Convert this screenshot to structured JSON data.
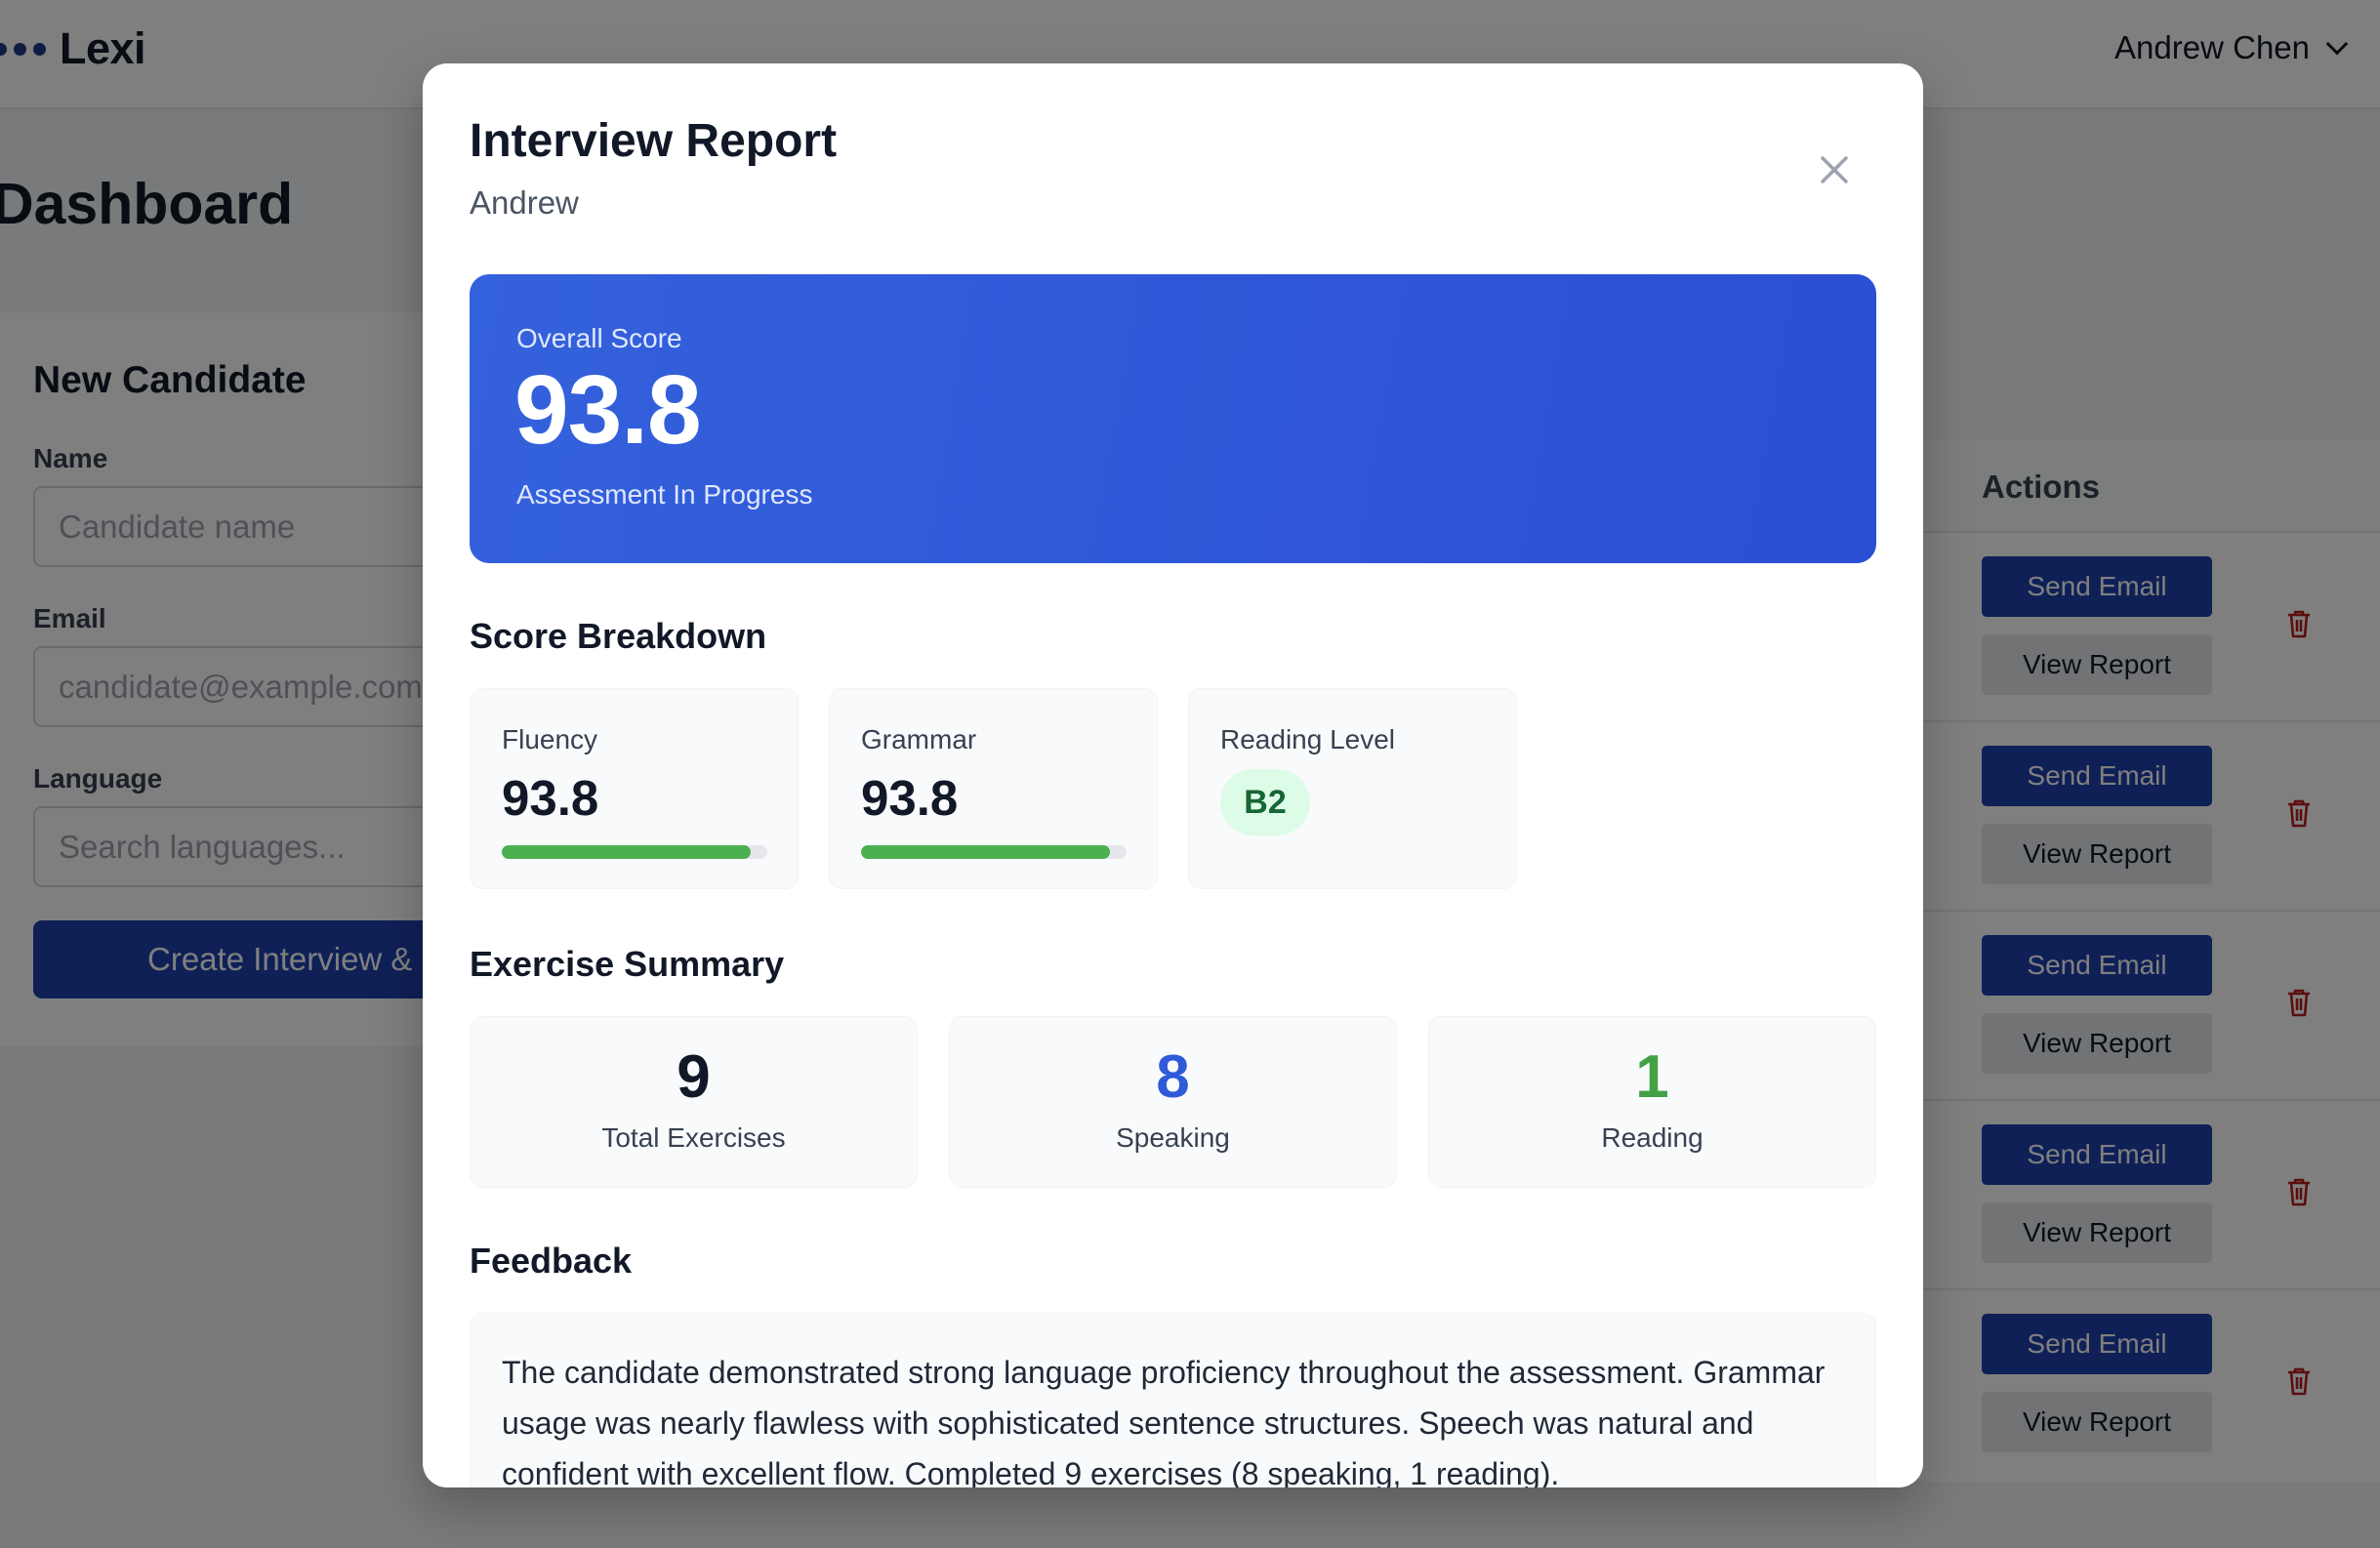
{
  "app": {
    "logo_text": "Lexi",
    "user_name": "Andrew Chen",
    "page_title": "Dashboard"
  },
  "new_candidate": {
    "heading": "New Candidate",
    "name_label": "Name",
    "name_placeholder": "Candidate name",
    "email_label": "Email",
    "email_placeholder": "candidate@example.com",
    "language_label": "Language",
    "language_placeholder": "Search languages...",
    "create_button": "Create Interview & Send"
  },
  "candidates_table": {
    "actions_header": "Actions",
    "rows": [
      {
        "send_label": "Send Email",
        "view_label": "View Report"
      },
      {
        "send_label": "Send Email",
        "view_label": "View Report"
      },
      {
        "send_label": "Send Email",
        "view_label": "View Report"
      },
      {
        "send_label": "Send Email",
        "view_label": "View Report"
      },
      {
        "send_label": "Send Email",
        "view_label": "View Report"
      }
    ]
  },
  "modal": {
    "title": "Interview Report",
    "candidate": "Andrew",
    "overall": {
      "label": "Overall Score",
      "value": "93.8",
      "status": "Assessment In Progress"
    },
    "breakdown_title": "Score Breakdown",
    "fluency": {
      "label": "Fluency",
      "value": "93.8",
      "progress": 0.938
    },
    "grammar": {
      "label": "Grammar",
      "value": "93.8",
      "progress": 0.938
    },
    "reading_level": {
      "label": "Reading Level",
      "value": "B2"
    },
    "exercise_title": "Exercise Summary",
    "exercises": [
      {
        "value": "9",
        "label": "Total Exercises",
        "color": "#111827"
      },
      {
        "value": "8",
        "label": "Speaking",
        "color": "#2f5bd8"
      },
      {
        "value": "1",
        "label": "Reading",
        "color": "#43a047"
      }
    ],
    "feedback_title": "Feedback",
    "feedback_text": "The candidate demonstrated strong language proficiency throughout the assessment. Grammar usage was nearly flawless with sophisticated sentence structures. Speech was natural and confident with excellent flow. Completed 9 exercises (8 speaking, 1 reading)."
  },
  "colors": {
    "accent": "#1e40af",
    "hero_start": "#3461dc",
    "hero_end": "#2a4fd3",
    "progress": "#4caf50",
    "danger": "#b91c1c"
  },
  "icons": [
    "logo-dots-icon",
    "chevron-down-icon",
    "close-icon",
    "trash-icon"
  ]
}
